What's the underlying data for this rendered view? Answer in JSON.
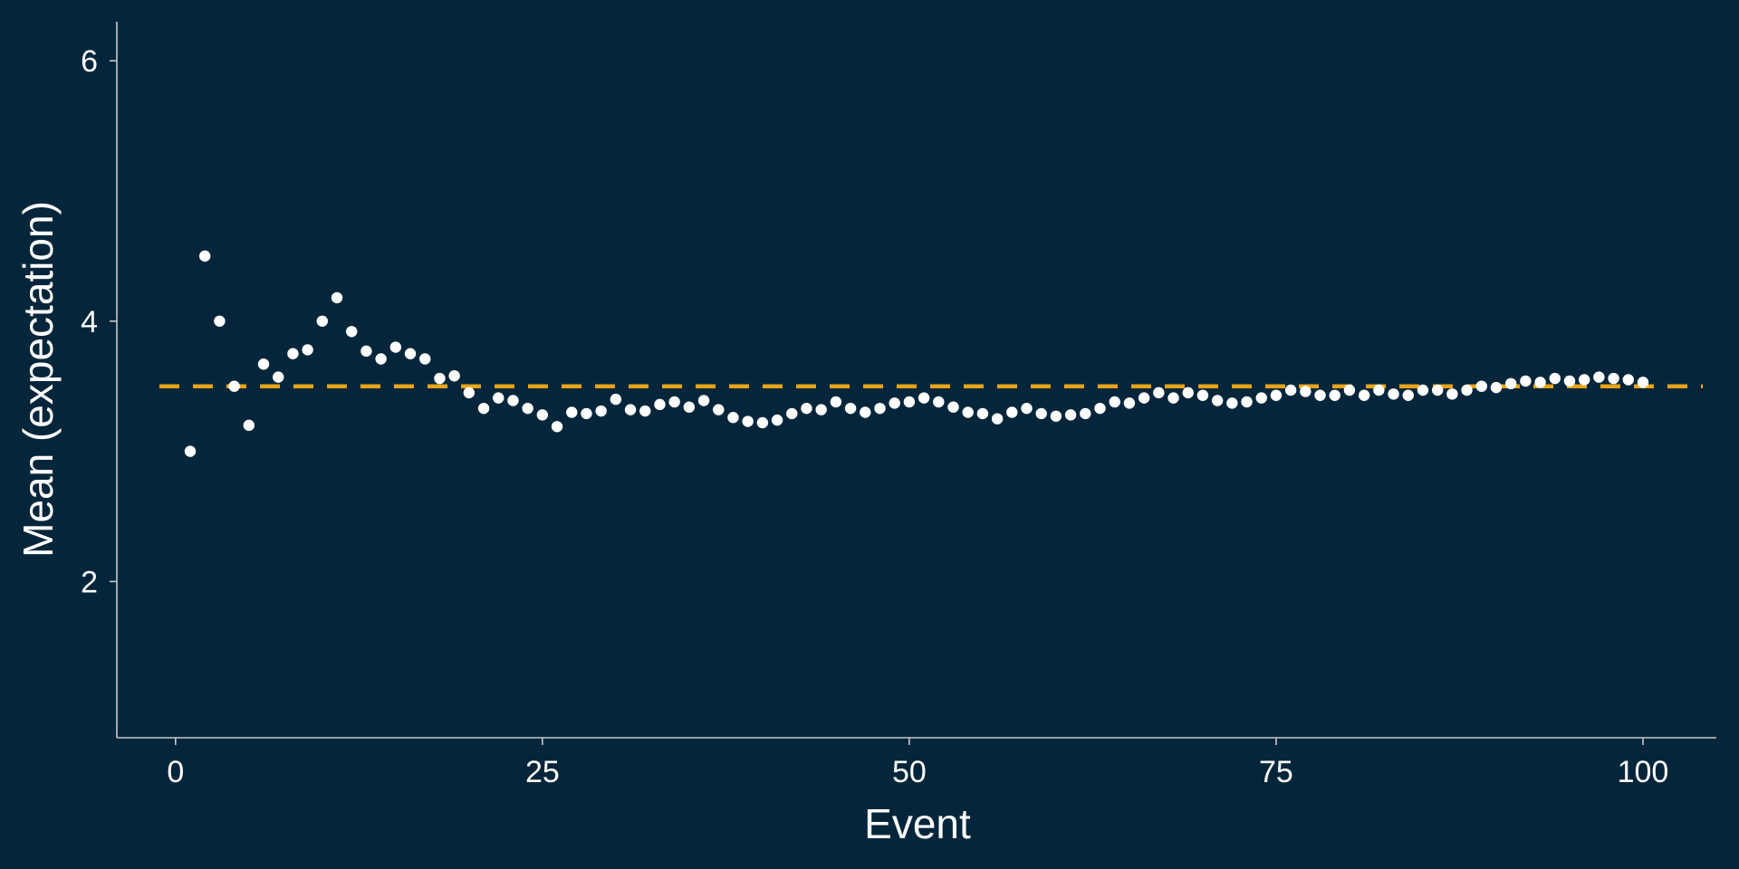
{
  "chart_data": {
    "type": "scatter",
    "title": "",
    "xlabel": "Event",
    "ylabel": "Mean (expectation)",
    "xlim": [
      -4,
      105
    ],
    "ylim": [
      0.8,
      6.3
    ],
    "xticks": [
      0,
      25,
      50,
      75,
      100
    ],
    "yticks": [
      2,
      4,
      6
    ],
    "reference_line": {
      "y": 3.5,
      "style": "dashed",
      "color": "#e8a317"
    },
    "point_color": "#ffffff",
    "axis_color": "#c8c8c8",
    "background": "#05263a",
    "x": [
      1,
      2,
      3,
      4,
      5,
      6,
      7,
      8,
      9,
      10,
      11,
      12,
      13,
      14,
      15,
      16,
      17,
      18,
      19,
      20,
      21,
      22,
      23,
      24,
      25,
      26,
      27,
      28,
      29,
      30,
      31,
      32,
      33,
      34,
      35,
      36,
      37,
      38,
      39,
      40,
      41,
      42,
      43,
      44,
      45,
      46,
      47,
      48,
      49,
      50,
      51,
      52,
      53,
      54,
      55,
      56,
      57,
      58,
      59,
      60,
      61,
      62,
      63,
      64,
      65,
      66,
      67,
      68,
      69,
      70,
      71,
      72,
      73,
      74,
      75,
      76,
      77,
      78,
      79,
      80,
      81,
      82,
      83,
      84,
      85,
      86,
      87,
      88,
      89,
      90,
      91,
      92,
      93,
      94,
      95,
      96,
      97,
      98,
      99,
      100
    ],
    "y": [
      3.0,
      4.5,
      4.0,
      3.5,
      3.2,
      3.67,
      3.57,
      3.75,
      3.78,
      4.0,
      4.18,
      3.92,
      3.77,
      3.71,
      3.8,
      3.75,
      3.71,
      3.56,
      3.58,
      3.45,
      3.33,
      3.41,
      3.39,
      3.33,
      3.28,
      3.19,
      3.3,
      3.29,
      3.31,
      3.4,
      3.32,
      3.31,
      3.36,
      3.38,
      3.34,
      3.39,
      3.32,
      3.26,
      3.23,
      3.22,
      3.24,
      3.29,
      3.33,
      3.32,
      3.38,
      3.33,
      3.3,
      3.33,
      3.37,
      3.38,
      3.41,
      3.38,
      3.34,
      3.3,
      3.29,
      3.25,
      3.3,
      3.33,
      3.29,
      3.27,
      3.28,
      3.29,
      3.33,
      3.38,
      3.37,
      3.41,
      3.45,
      3.41,
      3.45,
      3.43,
      3.39,
      3.37,
      3.38,
      3.41,
      3.43,
      3.47,
      3.46,
      3.43,
      3.43,
      3.47,
      3.43,
      3.47,
      3.44,
      3.43,
      3.47,
      3.47,
      3.44,
      3.47,
      3.5,
      3.49,
      3.52,
      3.54,
      3.53,
      3.56,
      3.54,
      3.55,
      3.57,
      3.56,
      3.55,
      3.53
    ]
  }
}
